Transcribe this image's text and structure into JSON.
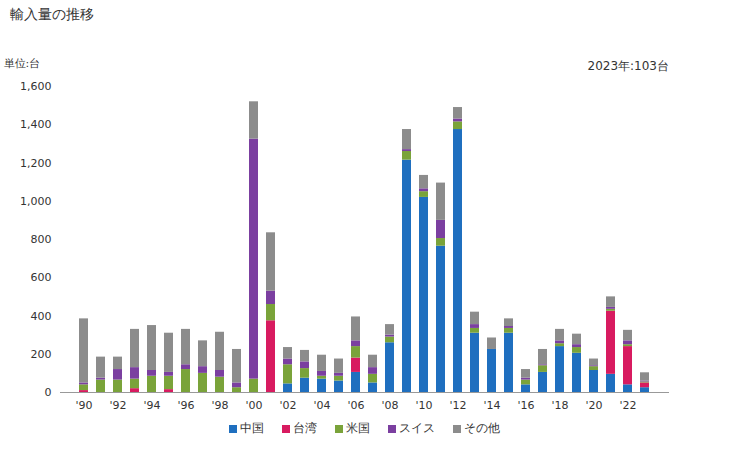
{
  "chart_data": {
    "type": "bar",
    "stacked": true,
    "title": "輸入量の推移",
    "ylabel": "単位:台",
    "annotations": [
      "2023年:103台"
    ],
    "categories": [
      "'90",
      null,
      "'92",
      null,
      "'94",
      null,
      "'96",
      null,
      "'98",
      null,
      "'00",
      null,
      "'02",
      null,
      "'04",
      null,
      "'06",
      null,
      "'08",
      null,
      "'10",
      null,
      "'12",
      null,
      "'14",
      null,
      "'16",
      null,
      "'18",
      null,
      "'20",
      null,
      "'22",
      null
    ],
    "series": [
      {
        "name": "中国",
        "color": "#1f6fbf",
        "values": [
          0,
          0,
          0,
          0,
          0,
          0,
          0,
          0,
          0,
          0,
          0,
          0,
          45,
          75,
          70,
          60,
          105,
          50,
          260,
          1215,
          1020,
          765,
          1375,
          310,
          225,
          310,
          40,
          105,
          240,
          205,
          115,
          95,
          40,
          25
        ]
      },
      {
        "name": "台湾",
        "color": "#d81b60",
        "values": [
          10,
          0,
          0,
          20,
          0,
          15,
          0,
          0,
          0,
          0,
          0,
          375,
          0,
          0,
          0,
          0,
          75,
          0,
          0,
          0,
          0,
          0,
          0,
          0,
          0,
          0,
          0,
          0,
          0,
          0,
          0,
          330,
          200,
          25
        ]
      },
      {
        "name": "米国",
        "color": "#7aa33a",
        "values": [
          30,
          65,
          65,
          50,
          85,
          70,
          120,
          100,
          80,
          25,
          70,
          85,
          100,
          50,
          15,
          25,
          60,
          45,
          30,
          45,
          30,
          40,
          40,
          25,
          0,
          25,
          25,
          35,
          15,
          30,
          20,
          10,
          10,
          5
        ]
      },
      {
        "name": "スイス",
        "color": "#7b3fa0",
        "values": [
          10,
          10,
          55,
          60,
          30,
          20,
          25,
          35,
          35,
          25,
          1255,
          70,
          30,
          35,
          25,
          15,
          30,
          35,
          10,
          10,
          15,
          95,
          15,
          20,
          0,
          10,
          10,
          5,
          15,
          15,
          5,
          10,
          20,
          5
        ]
      },
      {
        "name": "その他",
        "color": "#8c8c8c",
        "values": [
          335,
          110,
          65,
          200,
          235,
          205,
          185,
          135,
          200,
          175,
          195,
          305,
          60,
          60,
          85,
          75,
          125,
          65,
          55,
          105,
          70,
          195,
          60,
          65,
          60,
          40,
          45,
          80,
          60,
          55,
          35,
          55,
          55,
          43
        ]
      }
    ],
    "ylim": [
      0,
      1600
    ],
    "yticks": [
      0,
      200,
      400,
      600,
      800,
      {
        "value": 1000,
        "label": "1,000"
      },
      {
        "value": 1200,
        "label": "1,200"
      },
      {
        "value": 1400,
        "label": "1,400"
      },
      {
        "value": 1600,
        "label": "1,600"
      }
    ],
    "grid": false,
    "legend": "bottom"
  }
}
